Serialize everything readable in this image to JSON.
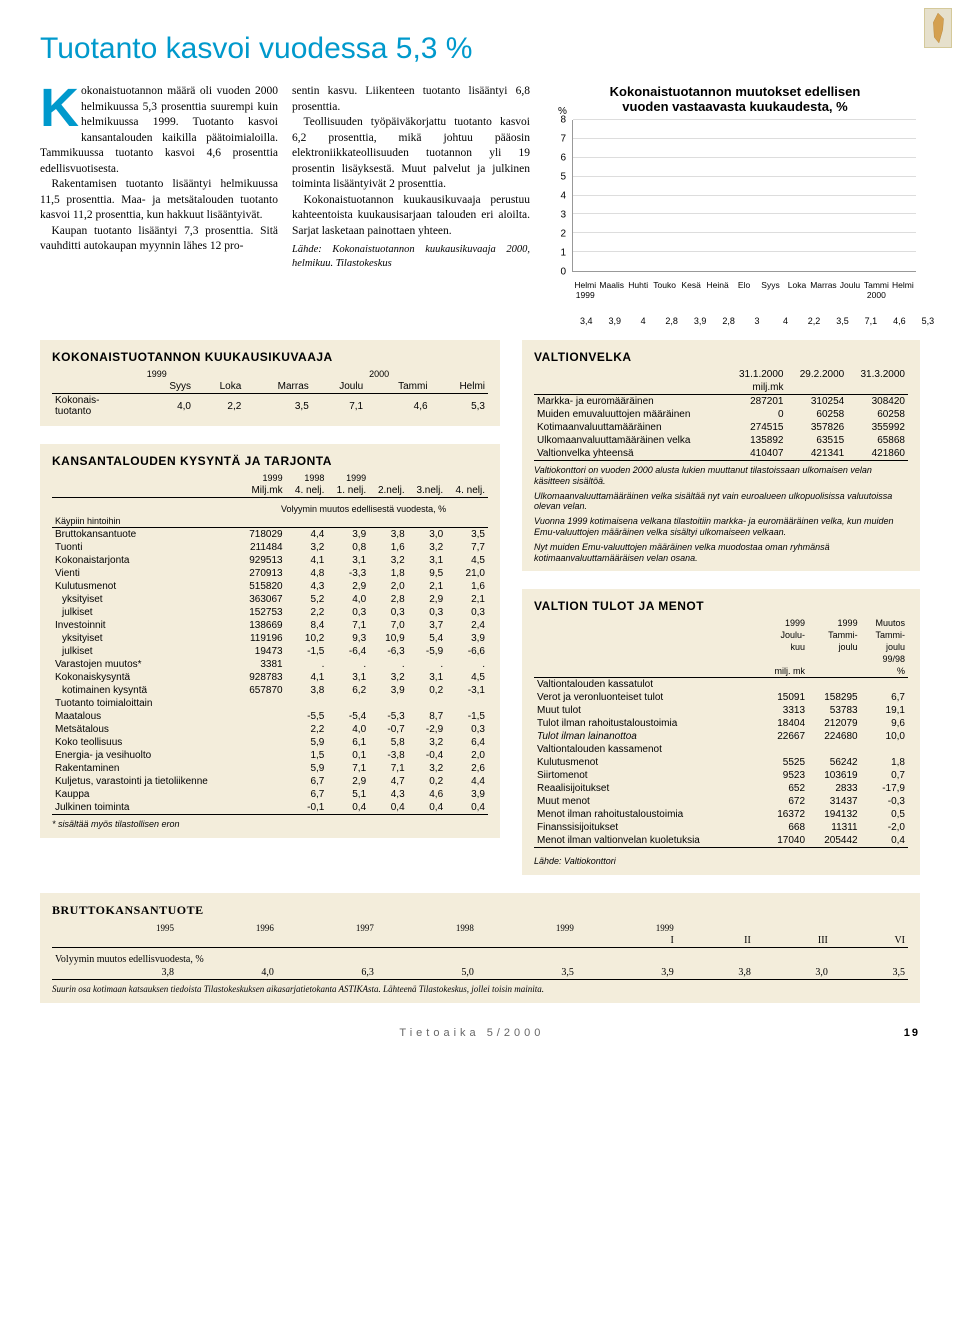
{
  "page": {
    "title": "Tuotanto kasvoi vuodessa 5,3 %",
    "footer_text": "Tietoaika 5/2000",
    "page_number": "19"
  },
  "body_text": {
    "col1_p1_dropcap": "K",
    "col1_p1": "okonaistuotannon määrä oli vuoden 2000 helmikuussa 5,3 prosenttia suurempi kuin helmikuussa 1999. Tuotanto kasvoi kansantalouden kaikilla päätoimialoilla. Tammikuussa tuotanto kasvoi 4,6 prosenttia edellisvuotisesta.",
    "col1_p2": "Rakentamisen tuotanto lisääntyi helmikuussa 11,5 prosenttia. Maa- ja metsätalouden tuotanto kasvoi 11,2 prosenttia, kun hakkuut lisääntyivät.",
    "col1_p3": "Kaupan tuotanto lisääntyi 7,3 prosenttia. Sitä vauhditti autokaupan myynnin lähes 12 pro-",
    "col2_p1": "sentin kasvu. Liikenteen tuotanto lisääntyi 6,8 prosenttia.",
    "col2_p2": "Teollisuuden työpäiväkorjattu tuotanto kasvoi 6,2 prosenttia, mikä johtuu pääosin elektroniikkateollisuuden tuotannon yli 19 prosentin lisäyksestä. Muut palvelut ja julkinen toiminta lisääntyivät 2 prosenttia.",
    "col2_p3": "Kokonaistuotannon kuukausikuvaaja perustuu kahteentoista kuukausisarjaan talouden eri aloilta. Sarjat lasketaan painottaen yhteen.",
    "col2_src": "Lähde: Kokonaistuotannon kuukausikuvaaja 2000, helmikuu. Tilastokeskus"
  },
  "chart": {
    "title_l1": "Kokonaistuotannon muutokset edellisen",
    "title_l2": "vuoden vastaavasta kuukaudesta, %",
    "y_label": "%",
    "ylim": [
      0,
      8
    ],
    "ytick_step": 1,
    "bar_color": "#c8bd8a",
    "grid_color": "#dddddd",
    "categories": [
      "Helmi 1999",
      "Maalis",
      "Huhti",
      "Touko",
      "Kesä",
      "Heinä",
      "Elo",
      "Syys",
      "Loka",
      "Marras",
      "Joulu",
      "Tammi 2000",
      "Helmi"
    ],
    "values": [
      3.4,
      3.9,
      4,
      2.8,
      3.9,
      2.8,
      3,
      4,
      2.2,
      3.5,
      7.1,
      4.6,
      5.3
    ],
    "value_labels": [
      "3,4",
      "3,9",
      "4",
      "2,8",
      "3,9",
      "2,8",
      "3",
      "4",
      "2,2",
      "3,5",
      "7,1",
      "4,6",
      "5,3"
    ]
  },
  "table_kk": {
    "title": "KOKONAISTUOTANNON KUUKAUSIKUVAAJA",
    "year_left": "1999",
    "year_right": "2000",
    "headers": [
      "",
      "Syys",
      "Loka",
      "Marras",
      "Joulu",
      "Tammi",
      "Helmi"
    ],
    "row_label": "Kokonais-\ntuotanto",
    "row": [
      "4,0",
      "2,2",
      "3,5",
      "7,1",
      "4,6",
      "5,3"
    ]
  },
  "table_kt": {
    "title": "KANSANTALOUDEN KYSYNTÄ JA TARJONTA",
    "hdr_year": [
      "1999",
      "1998",
      "1999",
      "",
      "",
      ""
    ],
    "hdr_unit": [
      "Milj.mk",
      "4. nelj.",
      "1. nelj.",
      "2.nelj.",
      "3.nelj.",
      "4. nelj."
    ],
    "subhdr": "Volyymin muutos edellisestä vuodesta, %",
    "price_row": "Käypiin hintoihin",
    "rows": [
      {
        "l": "Bruttokansantuote",
        "v": [
          "718029",
          "4,4",
          "3,9",
          "3,8",
          "3,0",
          "3,5"
        ]
      },
      {
        "l": "Tuonti",
        "v": [
          "211484",
          "3,2",
          "0,8",
          "1,6",
          "3,2",
          "7,7"
        ]
      },
      {
        "l": "Kokonaistarjonta",
        "v": [
          "929513",
          "4,1",
          "3,1",
          "3,2",
          "3,1",
          "4,5"
        ]
      },
      {
        "l": "Vienti",
        "v": [
          "270913",
          "4,8",
          "-3,3",
          "1,8",
          "9,5",
          "21,0"
        ]
      },
      {
        "l": "Kulutusmenot",
        "v": [
          "515820",
          "4,3",
          "2,9",
          "2,0",
          "2,1",
          "1,6"
        ]
      },
      {
        "l": "yksityiset",
        "v": [
          "363067",
          "5,2",
          "4,0",
          "2,8",
          "2,9",
          "2,1"
        ],
        "i": true
      },
      {
        "l": "julkiset",
        "v": [
          "152753",
          "2,2",
          "0,3",
          "0,3",
          "0,3",
          "0,3"
        ],
        "i": true
      },
      {
        "l": "Investoinnit",
        "v": [
          "138669",
          "8,4",
          "7,1",
          "7,0",
          "3,7",
          "2,4"
        ]
      },
      {
        "l": "yksityiset",
        "v": [
          "119196",
          "10,2",
          "9,3",
          "10,9",
          "5,4",
          "3,9"
        ],
        "i": true
      },
      {
        "l": "julkiset",
        "v": [
          "19473",
          "-1,5",
          "-6,4",
          "-6,3",
          "-5,9",
          "-6,6"
        ],
        "i": true
      },
      {
        "l": "Varastojen muutos*",
        "v": [
          "3381",
          ".",
          ".",
          ".",
          ".",
          "."
        ]
      },
      {
        "l": "Kokonaiskysyntä",
        "v": [
          "928783",
          "4,1",
          "3,1",
          "3,2",
          "3,1",
          "4,5"
        ]
      },
      {
        "l": "kotimainen kysyntä",
        "v": [
          "657870",
          "3,8",
          "6,2",
          "3,9",
          "0,2",
          "-3,1"
        ],
        "i": true
      },
      {
        "l": "Tuotanto toimialoittain",
        "v": [
          "",
          "",
          "",
          "",
          "",
          ""
        ],
        "hdr": true
      },
      {
        "l": "Maatalous",
        "v": [
          "",
          "-5,5",
          "-5,4",
          "-5,3",
          "8,7",
          "-1,5"
        ]
      },
      {
        "l": "Metsätalous",
        "v": [
          "",
          "2,2",
          "4,0",
          "-0,7",
          "-2,9",
          "0,3"
        ]
      },
      {
        "l": "Koko teollisuus",
        "v": [
          "",
          "5,9",
          "6,1",
          "5,8",
          "3,2",
          "6,4"
        ]
      },
      {
        "l": "Energia- ja vesihuolto",
        "v": [
          "",
          "1,5",
          "0,1",
          "-3,8",
          "-0,4",
          "2,0"
        ]
      },
      {
        "l": "Rakentaminen",
        "v": [
          "",
          "5,9",
          "7,1",
          "7,1",
          "3,2",
          "2,6"
        ]
      },
      {
        "l": "Kuljetus, varastointi ja tietoliikenne",
        "v": [
          "",
          "6,7",
          "2,9",
          "4,7",
          "0,2",
          "4,4"
        ]
      },
      {
        "l": "Kauppa",
        "v": [
          "",
          "6,7",
          "5,1",
          "4,3",
          "4,6",
          "3,9"
        ]
      },
      {
        "l": "Julkinen toiminta",
        "v": [
          "",
          "-0,1",
          "0,4",
          "0,4",
          "0,4",
          "0,4"
        ],
        "b": true
      }
    ],
    "note": "* sisältää myös tilastollisen eron"
  },
  "table_vv": {
    "title": "VALTIONVELKA",
    "hdr_dates": [
      "31.1.2000",
      "29.2.2000",
      "31.3.2000"
    ],
    "hdr_unit": "milj.mk",
    "rows": [
      {
        "l": "Markka- ja euromääräinen",
        "v": [
          "287201",
          "310254",
          "308420"
        ]
      },
      {
        "l": "Muiden emuvaluuttojen määräinen",
        "v": [
          "0",
          "60258",
          "60258"
        ]
      },
      {
        "l": "Kotimaanvaluuttamääräinen",
        "v": [
          "274515",
          "357826",
          "355992"
        ]
      },
      {
        "l": "Ulkomaanvaluuttamääräinen velka",
        "v": [
          "135892",
          "63515",
          "65868"
        ]
      },
      {
        "l": "Valtionvelka yhteensä",
        "v": [
          "410407",
          "421341",
          "421860"
        ],
        "b": true
      }
    ],
    "notes": [
      "Valtiokonttori on vuoden 2000 alusta lukien muuttanut tilastoissaan ulkomaisen velan käsitteen sisältöä.",
      "Ulkomaanvaluuttamääräinen velka sisältää nyt vain euroalueen ulkopuolisissa valuutoissa olevan velan.",
      "Vuonna 1999 kotimaisena velkana tilastoitiin markka- ja euromääräinen velka, kun muiden Emu-valuuttojen määräinen velka sisältyi ulkomaiseen velkaan.",
      "Nyt muiden Emu-valuuttojen määräinen velka muodostaa oman ryhmänsä kotimaanvaluuttamääräisen velan osana."
    ]
  },
  "table_vt": {
    "title": "VALTION TULOT JA MENOT",
    "hdr": [
      [
        "",
        "1999",
        "1999",
        "Muutos"
      ],
      [
        "",
        "Joulu-",
        "Tammi-",
        "Tammi-"
      ],
      [
        "",
        "kuu",
        "joulu",
        "joulu"
      ],
      [
        "",
        "",
        "",
        "99/98"
      ],
      [
        "",
        "milj. mk",
        "",
        "%"
      ]
    ],
    "sect1": "Valtiontalouden kassatulot",
    "rows1": [
      {
        "l": "Verot ja veronluonteiset tulot",
        "v": [
          "15091",
          "158295",
          "6,7"
        ]
      },
      {
        "l": "Muut tulot",
        "v": [
          "3313",
          "53783",
          "19,1"
        ]
      },
      {
        "l": "Tulot ilman rahoitustaloustoimia",
        "v": [
          "18404",
          "212079",
          "9,6"
        ]
      },
      {
        "l": "Tulot ilman lainanottoa",
        "v": [
          "22667",
          "224680",
          "10,0"
        ],
        "it": true
      }
    ],
    "sect2": "Valtiontalouden kassamenot",
    "rows2": [
      {
        "l": "Kulutusmenot",
        "v": [
          "5525",
          "56242",
          "1,8"
        ]
      },
      {
        "l": "Siirtomenot",
        "v": [
          "9523",
          "103619",
          "0,7"
        ]
      },
      {
        "l": "Reaalisijoitukset",
        "v": [
          "652",
          "2833",
          "-17,9"
        ]
      },
      {
        "l": "Muut menot",
        "v": [
          "672",
          "31437",
          "-0,3"
        ]
      },
      {
        "l": "Menot ilman rahoitustaloustoimia",
        "v": [
          "16372",
          "194132",
          "0,5"
        ]
      },
      {
        "l": "Finanssisijoitukset",
        "v": [
          "668",
          "11311",
          "-2,0"
        ]
      },
      {
        "l": "Menot ilman valtionvelan kuoletuksia",
        "v": [
          "17040",
          "205442",
          "0,4"
        ],
        "b": true
      }
    ],
    "src": "Lähde: Valtiokonttori"
  },
  "table_bkt": {
    "title": "BRUTTOKANSANTUOTE",
    "years": [
      "1995",
      "1996",
      "1997",
      "1998",
      "1999",
      "1999",
      "",
      "",
      ""
    ],
    "quarters": [
      "",
      "",
      "",
      "",
      "",
      "I",
      "II",
      "III",
      "VI"
    ],
    "row_label": "Volyymin muutos edellisvuodesta, %",
    "values": [
      "3,8",
      "4,0",
      "6,3",
      "5,0",
      "3,5",
      "3,9",
      "3,8",
      "3,0",
      "3,5"
    ],
    "note": "Suurin osa kotimaan katsauksen tiedoista Tilastokeskuksen aikasarjatietokanta ASTIKAsta. Lähteenä Tilastokeskus, jollei toisin mainita."
  }
}
